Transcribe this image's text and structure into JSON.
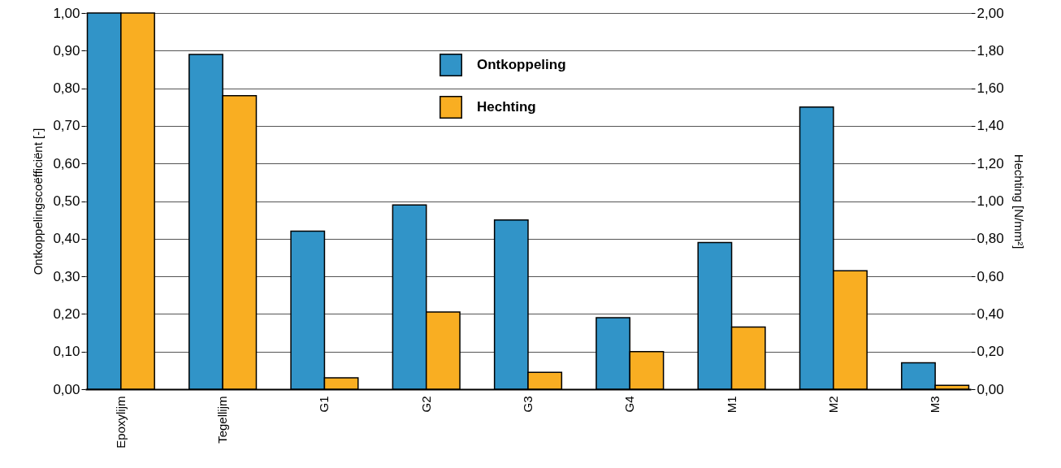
{
  "chart_data": {
    "type": "bar",
    "categories": [
      "Epoxylijm",
      "Tegellijm",
      "G1",
      "G2",
      "G3",
      "G4",
      "M1",
      "M2",
      "M3"
    ],
    "ylabel": "Ontkoppelingscoëfficiënt [-]",
    "y2label": "Hechting [N/mm²]",
    "series": [
      {
        "name": "Ontkoppeling",
        "color": "#3194c8",
        "values": [
          1.0,
          0.89,
          0.42,
          0.49,
          0.45,
          0.19,
          0.39,
          0.75,
          0.07
        ]
      },
      {
        "name": "Hechting",
        "color": "#f9ae22",
        "axis": "y2",
        "values": [
          2.0,
          1.56,
          0.06,
          0.41,
          0.09,
          0.2,
          0.33,
          0.63,
          0.02
        ]
      }
    ],
    "ylim": [
      0,
      1
    ],
    "yticks": [
      {
        "value": 0,
        "label": "0,00"
      },
      {
        "value": 0.1,
        "label": "0,10"
      },
      {
        "value": 0.2,
        "label": "0,20"
      },
      {
        "value": 0.3,
        "label": "0,30"
      },
      {
        "value": 0.4,
        "label": "0,40"
      },
      {
        "value": 0.5,
        "label": "0,50"
      },
      {
        "value": 0.6,
        "label": "0,60"
      },
      {
        "value": 0.7,
        "label": "0,70"
      },
      {
        "value": 0.8,
        "label": "0,80"
      },
      {
        "value": 0.9,
        "label": "0,90"
      },
      {
        "value": 1,
        "label": "1,00"
      }
    ],
    "y2lim": [
      0,
      2
    ],
    "y2ticks": [
      {
        "value": 0,
        "label": "0,00"
      },
      {
        "value": 0.2,
        "label": "0,20"
      },
      {
        "value": 0.4,
        "label": "0,40"
      },
      {
        "value": 0.6,
        "label": "0,60"
      },
      {
        "value": 0.8,
        "label": "0,80"
      },
      {
        "value": 1,
        "label": "1,00"
      },
      {
        "value": 1.2,
        "label": "1,20"
      },
      {
        "value": 1.4,
        "label": "1,40"
      },
      {
        "value": 1.6,
        "label": "1,60"
      },
      {
        "value": 1.8,
        "label": "1,80"
      },
      {
        "value": 2,
        "label": "2,00"
      }
    ],
    "grid": "y",
    "legend": "top"
  }
}
